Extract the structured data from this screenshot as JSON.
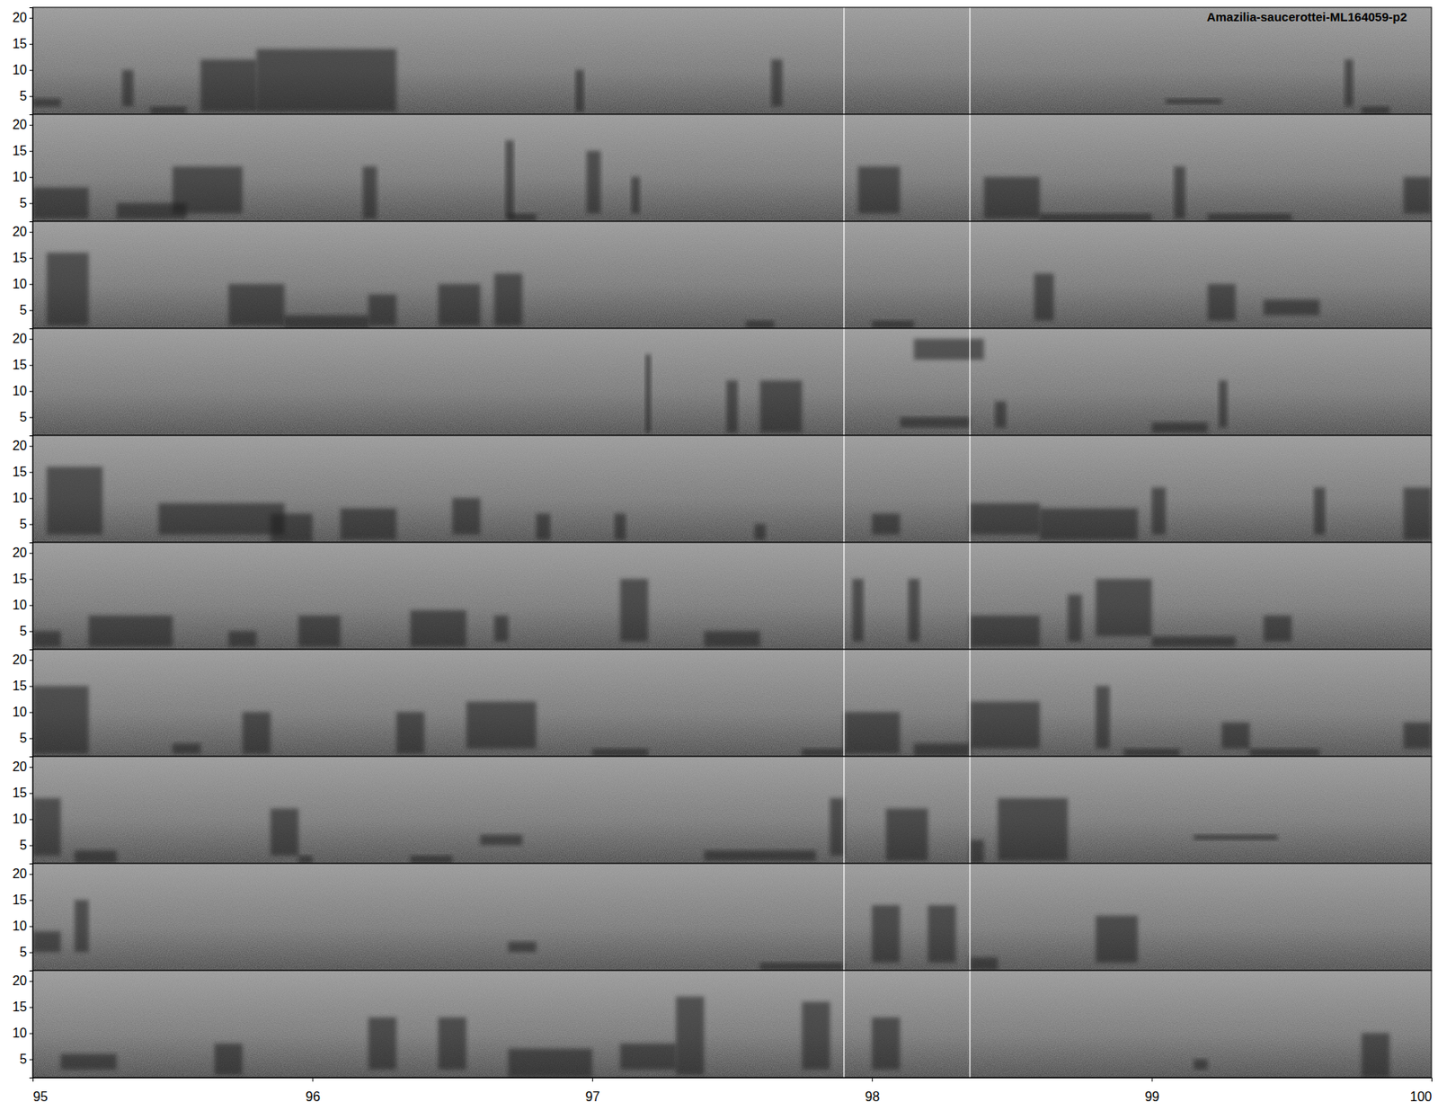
{
  "chart_data": {
    "type": "spectrogram",
    "title": "Amazilia-saucerottei-ML164059-p2",
    "xlim": [
      95,
      100
    ],
    "xticks": [
      95,
      96,
      97,
      98,
      99,
      100
    ],
    "ylim": [
      1.5,
      22
    ],
    "yticks": [
      5,
      10,
      15,
      20
    ],
    "cursor_lines": [
      97.9,
      98.35
    ],
    "panels": [
      {
        "events": [
          [
            95.0,
            95.1,
            3,
            4.5
          ],
          [
            95.32,
            95.36,
            3,
            10
          ],
          [
            95.42,
            95.55,
            1.5,
            3
          ],
          [
            95.6,
            95.8,
            2,
            12
          ],
          [
            95.8,
            96.3,
            2,
            14
          ],
          [
            96.94,
            96.97,
            2,
            10
          ],
          [
            97.64,
            97.68,
            3,
            12
          ],
          [
            99.05,
            99.25,
            3.5,
            4.5
          ],
          [
            99.69,
            99.72,
            3,
            12
          ],
          [
            99.75,
            99.85,
            1.5,
            3
          ]
        ]
      },
      {
        "events": [
          [
            95.0,
            95.2,
            2,
            8
          ],
          [
            95.3,
            95.55,
            2,
            5
          ],
          [
            95.5,
            95.75,
            3,
            12
          ],
          [
            96.18,
            96.23,
            2,
            12
          ],
          [
            96.69,
            96.72,
            2,
            17
          ],
          [
            96.7,
            96.8,
            1.5,
            3
          ],
          [
            96.98,
            97.03,
            3,
            15
          ],
          [
            97.14,
            97.17,
            3,
            10
          ],
          [
            97.95,
            98.1,
            3,
            12
          ],
          [
            98.4,
            98.6,
            2,
            10
          ],
          [
            98.6,
            99.0,
            1.5,
            3
          ],
          [
            99.08,
            99.12,
            2,
            12
          ],
          [
            99.2,
            99.5,
            1.5,
            3
          ],
          [
            99.9,
            100,
            3,
            10
          ]
        ]
      },
      {
        "events": [
          [
            95.05,
            95.2,
            2,
            16
          ],
          [
            95.7,
            95.9,
            2,
            10
          ],
          [
            95.9,
            96.2,
            1.5,
            4
          ],
          [
            96.2,
            96.3,
            2,
            8
          ],
          [
            96.45,
            96.6,
            2,
            10
          ],
          [
            96.65,
            96.75,
            2,
            12
          ],
          [
            97.55,
            97.65,
            1.5,
            3
          ],
          [
            98.0,
            98.15,
            1.5,
            3
          ],
          [
            98.58,
            98.65,
            3,
            12
          ],
          [
            99.2,
            99.3,
            3,
            10
          ],
          [
            99.4,
            99.6,
            4,
            7
          ]
        ]
      },
      {
        "events": [
          [
            97.19,
            97.21,
            2,
            17
          ],
          [
            97.48,
            97.52,
            2,
            12
          ],
          [
            97.6,
            97.75,
            2,
            12
          ],
          [
            98.1,
            98.35,
            3,
            5
          ],
          [
            98.15,
            98.4,
            16,
            20
          ],
          [
            98.44,
            98.48,
            3,
            8
          ],
          [
            99.0,
            99.2,
            2,
            4
          ],
          [
            99.24,
            99.27,
            3,
            12
          ]
        ]
      },
      {
        "events": [
          [
            95.05,
            95.25,
            3,
            16
          ],
          [
            95.45,
            95.9,
            3,
            9
          ],
          [
            95.85,
            96.0,
            1.5,
            7
          ],
          [
            96.1,
            96.3,
            2,
            8
          ],
          [
            96.5,
            96.6,
            3,
            10
          ],
          [
            96.8,
            96.85,
            2,
            7
          ],
          [
            97.08,
            97.12,
            2,
            7
          ],
          [
            97.58,
            97.62,
            2,
            5
          ],
          [
            98.0,
            98.1,
            3,
            7
          ],
          [
            98.35,
            98.6,
            3,
            9
          ],
          [
            98.6,
            98.95,
            2,
            8
          ],
          [
            99.0,
            99.05,
            3,
            12
          ],
          [
            99.58,
            99.62,
            3,
            12
          ],
          [
            99.9,
            100,
            2,
            12
          ]
        ]
      },
      {
        "events": [
          [
            95.0,
            95.1,
            2,
            5
          ],
          [
            95.2,
            95.5,
            2,
            8
          ],
          [
            95.7,
            95.8,
            2,
            5
          ],
          [
            95.95,
            96.1,
            2,
            8
          ],
          [
            96.35,
            96.55,
            2,
            9
          ],
          [
            96.65,
            96.7,
            3,
            8
          ],
          [
            97.1,
            97.2,
            3,
            15
          ],
          [
            97.4,
            97.6,
            2,
            5
          ],
          [
            97.93,
            97.97,
            3,
            15
          ],
          [
            98.13,
            98.17,
            3,
            15
          ],
          [
            98.35,
            98.6,
            2,
            8
          ],
          [
            98.7,
            98.75,
            3,
            12
          ],
          [
            98.8,
            99.0,
            4,
            15
          ],
          [
            99.0,
            99.3,
            2,
            4
          ],
          [
            99.4,
            99.5,
            3,
            8
          ]
        ]
      },
      {
        "events": [
          [
            95.0,
            95.2,
            2,
            15
          ],
          [
            95.5,
            95.6,
            2,
            4
          ],
          [
            95.75,
            95.85,
            2,
            10
          ],
          [
            96.3,
            96.4,
            2,
            10
          ],
          [
            96.55,
            96.8,
            3,
            12
          ],
          [
            97.0,
            97.2,
            1.5,
            3
          ],
          [
            97.75,
            97.9,
            1.5,
            3
          ],
          [
            97.9,
            98.1,
            2,
            10
          ],
          [
            98.15,
            98.35,
            1.5,
            4
          ],
          [
            98.35,
            98.6,
            3,
            12
          ],
          [
            98.8,
            98.85,
            3,
            15
          ],
          [
            98.9,
            99.1,
            1.5,
            3
          ],
          [
            99.25,
            99.35,
            3,
            8
          ],
          [
            99.35,
            99.6,
            1.5,
            3
          ],
          [
            99.9,
            100,
            3,
            8
          ]
        ]
      },
      {
        "events": [
          [
            95.0,
            95.1,
            3,
            14
          ],
          [
            95.15,
            95.3,
            1.5,
            4
          ],
          [
            95.85,
            95.95,
            3,
            12
          ],
          [
            95.95,
            96.0,
            1.5,
            3
          ],
          [
            96.35,
            96.5,
            1.5,
            3
          ],
          [
            96.6,
            96.75,
            5,
            7
          ],
          [
            97.4,
            97.8,
            2,
            4
          ],
          [
            97.85,
            97.9,
            3,
            14
          ],
          [
            98.05,
            98.2,
            2,
            12
          ],
          [
            98.35,
            98.4,
            1.5,
            6
          ],
          [
            98.45,
            98.7,
            2,
            14
          ],
          [
            99.15,
            99.45,
            6,
            7
          ]
        ]
      },
      {
        "events": [
          [
            95.0,
            95.1,
            5,
            9
          ],
          [
            95.15,
            95.2,
            5,
            15
          ],
          [
            96.7,
            96.8,
            5,
            7
          ],
          [
            97.6,
            97.9,
            1.5,
            3
          ],
          [
            98.0,
            98.1,
            3,
            14
          ],
          [
            98.2,
            98.3,
            3,
            14
          ],
          [
            98.35,
            98.45,
            1.5,
            4
          ],
          [
            98.8,
            98.95,
            3,
            12
          ]
        ]
      },
      {
        "events": [
          [
            95.1,
            95.3,
            3,
            6
          ],
          [
            95.65,
            95.75,
            2,
            8
          ],
          [
            96.2,
            96.3,
            3,
            13
          ],
          [
            96.45,
            96.55,
            3,
            13
          ],
          [
            96.7,
            97.0,
            1.5,
            7
          ],
          [
            97.1,
            97.3,
            3,
            8
          ],
          [
            97.3,
            97.4,
            2,
            17
          ],
          [
            97.75,
            97.85,
            3,
            16
          ],
          [
            98.0,
            98.1,
            3,
            13
          ],
          [
            99.15,
            99.2,
            3,
            5
          ],
          [
            99.75,
            99.85,
            1.5,
            10
          ]
        ]
      }
    ]
  }
}
